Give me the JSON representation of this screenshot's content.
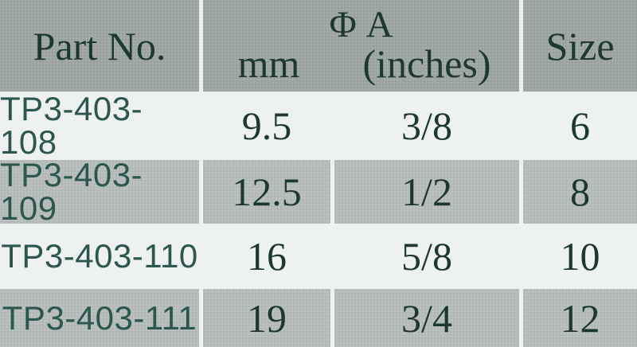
{
  "table": {
    "header": {
      "part_no": "Part No.",
      "phi_a": "Φ A",
      "mm": "mm",
      "inches": "(inches)",
      "size": "Size"
    },
    "rows": [
      {
        "part_no": "TP3-403-108",
        "mm": "9.5",
        "inches": "3/8",
        "size": "6"
      },
      {
        "part_no": "TP3-403-109",
        "mm": "12.5",
        "inches": "1/2",
        "size": "8"
      },
      {
        "part_no": "TP3-403-110",
        "mm": "16",
        "inches": "5/8",
        "size": "10"
      },
      {
        "part_no": "TP3-403-111",
        "mm": "19",
        "inches": "3/4",
        "size": "12"
      }
    ],
    "colors": {
      "header_bg": "#9ca5a1",
      "gray_row_bg": "#b5bcb9",
      "light_row_bg": "#edf1ef",
      "header_text": "#1d3833",
      "value_text": "#1d3833",
      "part_no_text": "#2d5650"
    }
  }
}
